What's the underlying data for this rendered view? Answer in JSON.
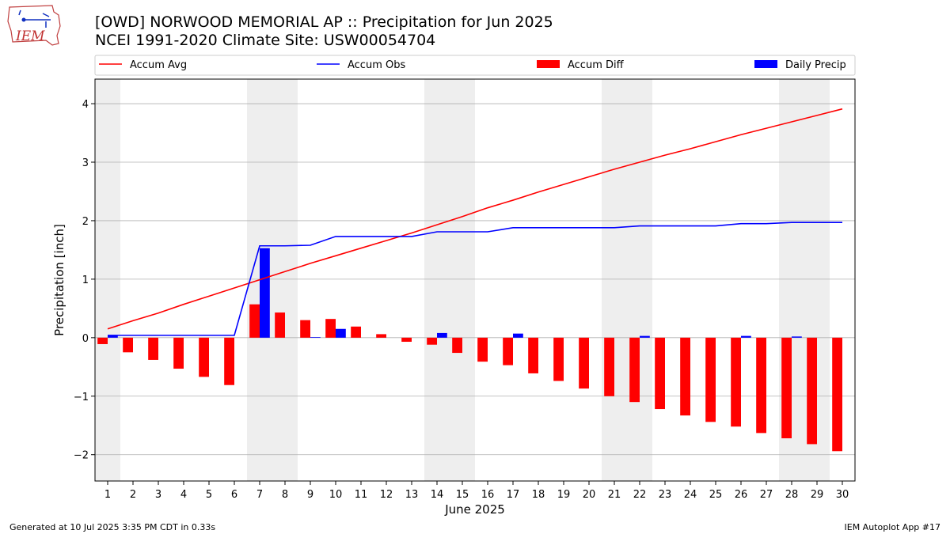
{
  "header": {
    "title": "[OWD] NORWOOD MEMORIAL AP :: Precipitation for Jun 2025",
    "subtitle": "NCEI 1991-2020 Climate Site: USW00054704",
    "logo_text": "IEM"
  },
  "footer": {
    "generated": "Generated at 10 Jul 2025 3:35 PM CDT in 0.33s",
    "app": "IEM Autoplot App #17"
  },
  "chart_data": {
    "type": "bar",
    "xlabel": "June 2025",
    "ylabel": "Precipitation [inch]",
    "ylim": [
      -2.45,
      4.42
    ],
    "xlim": [
      0.5,
      30.5
    ],
    "yticks": [
      -2,
      -1,
      0,
      1,
      2,
      3,
      4
    ],
    "ytick_labels": [
      "−2",
      "−1",
      "0",
      "1",
      "2",
      "3",
      "4"
    ],
    "grid": "horizontal",
    "legend_placement": "top",
    "weekend_shading": [
      [
        0.5,
        1.5
      ],
      [
        6.5,
        8.5
      ],
      [
        13.5,
        15.5
      ],
      [
        20.5,
        22.5
      ],
      [
        27.5,
        29.5
      ]
    ],
    "x": [
      1,
      2,
      3,
      4,
      5,
      6,
      7,
      8,
      9,
      10,
      11,
      12,
      13,
      14,
      15,
      16,
      17,
      18,
      19,
      20,
      21,
      22,
      23,
      24,
      25,
      26,
      27,
      28,
      29,
      30
    ],
    "series": [
      {
        "name": "Accum Avg",
        "kind": "line",
        "color": "#ff0000",
        "values": [
          0.15,
          0.29,
          0.42,
          0.57,
          0.71,
          0.85,
          0.99,
          1.13,
          1.27,
          1.4,
          1.53,
          1.66,
          1.79,
          1.93,
          2.07,
          2.22,
          2.35,
          2.49,
          2.62,
          2.75,
          2.88,
          3.0,
          3.12,
          3.23,
          3.35,
          3.47,
          3.58,
          3.69,
          3.8,
          3.91
        ]
      },
      {
        "name": "Accum Obs",
        "kind": "line",
        "color": "#0000ff",
        "values": [
          0.04,
          0.04,
          0.04,
          0.04,
          0.04,
          0.04,
          1.57,
          1.57,
          1.58,
          1.73,
          1.73,
          1.73,
          1.73,
          1.81,
          1.81,
          1.81,
          1.88,
          1.88,
          1.88,
          1.88,
          1.88,
          1.91,
          1.91,
          1.91,
          1.91,
          1.95,
          1.95,
          1.97,
          1.97,
          1.97
        ]
      },
      {
        "name": "Accum Diff",
        "kind": "bar",
        "color": "#ff0000",
        "values": [
          -0.11,
          -0.25,
          -0.38,
          -0.53,
          -0.67,
          -0.81,
          0.57,
          0.43,
          0.3,
          0.32,
          0.19,
          0.06,
          -0.07,
          -0.12,
          -0.26,
          -0.41,
          -0.47,
          -0.61,
          -0.74,
          -0.87,
          -1.0,
          -1.1,
          -1.22,
          -1.33,
          -1.44,
          -1.52,
          -1.63,
          -1.72,
          -1.82,
          -1.94
        ]
      },
      {
        "name": "Daily Precip",
        "kind": "bar",
        "color": "#0000ff",
        "values": [
          0.04,
          0,
          0,
          0,
          0,
          0,
          1.53,
          0,
          0.01,
          0.15,
          0,
          0,
          0,
          0.08,
          0,
          0,
          0.07,
          0,
          0,
          0,
          0,
          0.03,
          0,
          0,
          0,
          0.03,
          0,
          0.02,
          0,
          0
        ]
      }
    ]
  }
}
